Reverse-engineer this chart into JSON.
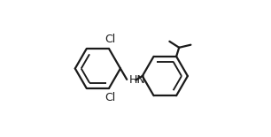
{
  "background_color": "#ffffff",
  "line_color": "#1a1a1a",
  "line_width": 1.6,
  "label_color": "#1a1a1a",
  "label_fontsize": 9.0,
  "fig_width": 3.06,
  "fig_height": 1.55,
  "cl_top_label": "Cl",
  "cl_bottom_label": "Cl",
  "hn_label": "HN"
}
